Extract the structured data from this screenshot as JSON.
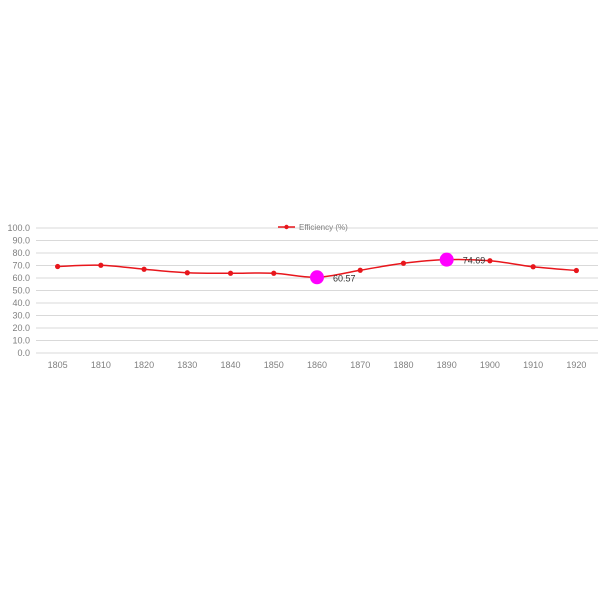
{
  "chart_data": {
    "type": "line",
    "title": "",
    "xlabel": "",
    "ylabel": "",
    "categories": [
      "1805",
      "1810",
      "1820",
      "1830",
      "1840",
      "1850",
      "1860",
      "1870",
      "1880",
      "1890",
      "1900",
      "1910",
      "1920"
    ],
    "series": [
      {
        "name": "Efficiency (%)",
        "values": [
          69.2,
          70.2,
          67.0,
          64.2,
          63.8,
          63.8,
          60.57,
          66.2,
          71.8,
          74.69,
          73.8,
          69.0,
          66.0
        ]
      }
    ],
    "y_ticks": [
      "0.0",
      "10.0",
      "20.0",
      "30.0",
      "40.0",
      "50.0",
      "60.0",
      "70.0",
      "80.0",
      "90.0",
      "100.0"
    ],
    "ylim": [
      0,
      100
    ],
    "grid": true,
    "legend": {
      "position": "top-center",
      "label": "Efficiency (%)"
    },
    "highlights": [
      {
        "index": 6,
        "label": "60.57"
      },
      {
        "index": 9,
        "label": "74.69"
      }
    ],
    "colors": {
      "series": "#e8161c",
      "highlight": "#ff00ff",
      "grid": "#d9d9d9",
      "axis_text": "#808080"
    }
  }
}
